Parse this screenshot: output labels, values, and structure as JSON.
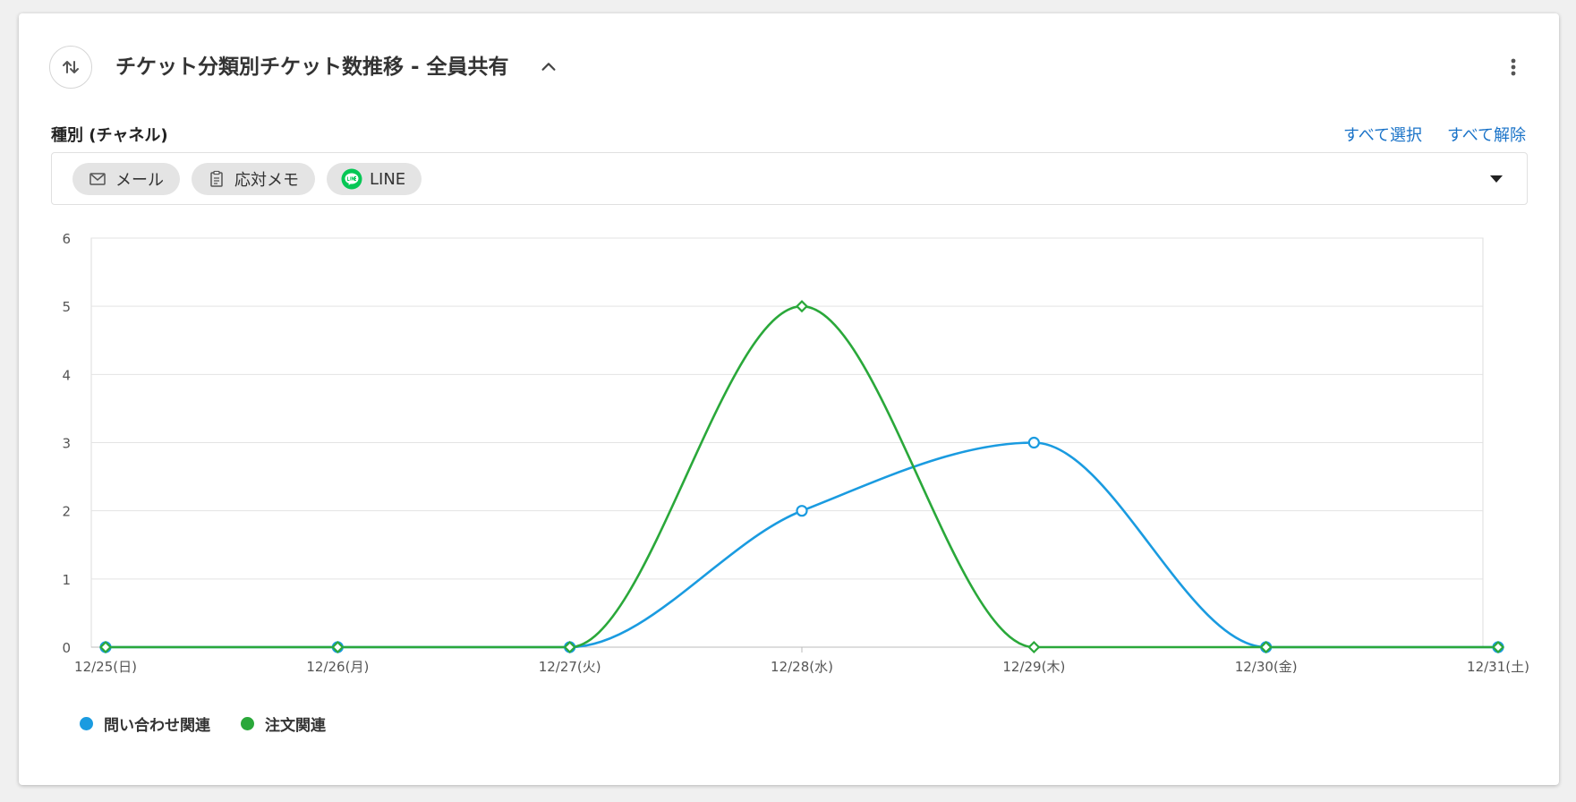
{
  "header": {
    "title": "チケット分類別チケット数推移 - 全員共有",
    "sort_icon": "sort-arrows-icon",
    "collapse_icon": "chevron-up-icon",
    "more_icon": "more-vertical-icon"
  },
  "filter": {
    "label": "種別 (チャネル)",
    "select_all": "すべて選択",
    "deselect_all": "すべて解除",
    "chips": [
      {
        "label": "メール",
        "icon": "mail-icon"
      },
      {
        "label": "応対メモ",
        "icon": "clipboard-icon"
      },
      {
        "label": "LINE",
        "icon": "line-logo-icon"
      }
    ]
  },
  "colors": {
    "series_blue": "#1a9be0",
    "series_green": "#2aa83a",
    "line_brand": "#06c755",
    "link": "#1a73c8"
  },
  "chart_data": {
    "type": "line",
    "x": [
      "12/25(日)",
      "12/26(月)",
      "12/27(火)",
      "12/28(水)",
      "12/29(木)",
      "12/30(金)",
      "12/31(土)"
    ],
    "ylim": [
      0,
      6
    ],
    "yticks": [
      0,
      1,
      2,
      3,
      4,
      5,
      6
    ],
    "grid": true,
    "legend": "bottom-left",
    "series": [
      {
        "name": "問い合わせ関連",
        "values": [
          0,
          0,
          0,
          2,
          3,
          0,
          0
        ],
        "color": "#1a9be0",
        "marker": "circle"
      },
      {
        "name": "注文関連",
        "values": [
          0,
          0,
          0,
          5,
          0,
          0,
          0
        ],
        "color": "#2aa83a",
        "marker": "diamond"
      }
    ]
  }
}
